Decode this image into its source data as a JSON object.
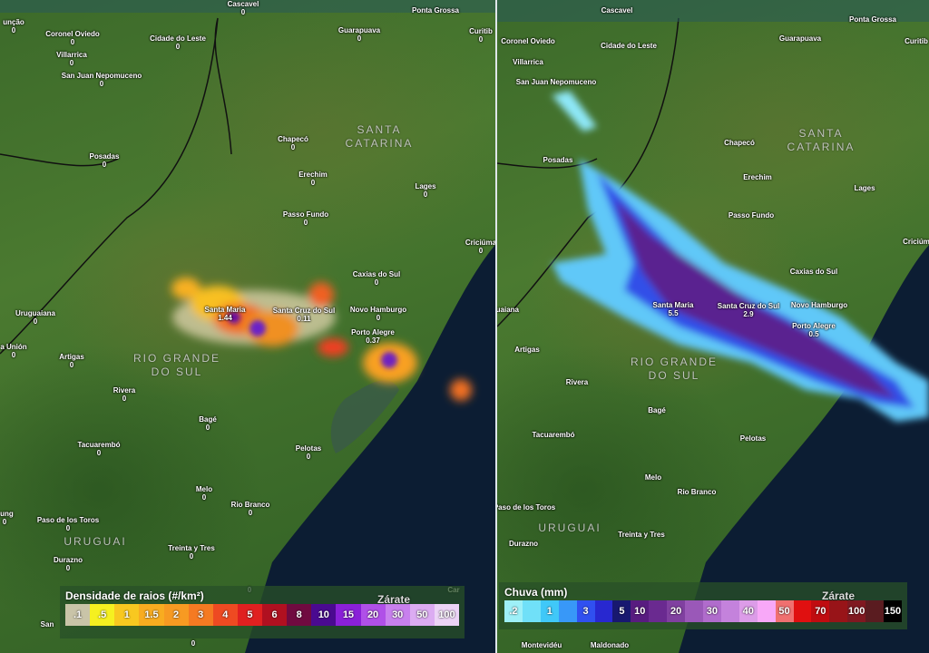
{
  "left_map": {
    "labels": [
      {
        "name": "unção",
        "value": "0"
      },
      {
        "name": "Coronel Oviedo",
        "value": "0"
      },
      {
        "name": "Villarrica",
        "value": "0"
      },
      {
        "name": "San Juan Nepomuceno",
        "value": "0"
      },
      {
        "name": "Cidade do Leste",
        "value": "0"
      },
      {
        "name": "Cascavel",
        "value": "0"
      },
      {
        "name": "Ponta Grossa",
        "value": ""
      },
      {
        "name": "Guarapuava",
        "value": "0"
      },
      {
        "name": "Curitib",
        "value": "0"
      },
      {
        "name": "Posadas",
        "value": "0"
      },
      {
        "name": "Chapecó",
        "value": "0"
      },
      {
        "name": "Erechim",
        "value": "0"
      },
      {
        "name": "Lages",
        "value": "0"
      },
      {
        "name": "Passo Fundo",
        "value": "0"
      },
      {
        "name": "Criciúma",
        "value": "0"
      },
      {
        "name": "Caxias do Sul",
        "value": "0"
      },
      {
        "name": "Uruguaiana",
        "value": "0"
      },
      {
        "name": "Santa Maria",
        "value": "1.44"
      },
      {
        "name": "Santa Cruz do Sul",
        "value": "0.11"
      },
      {
        "name": "Novo Hamburgo",
        "value": "0"
      },
      {
        "name": "Porto Alegre",
        "value": "0.37"
      },
      {
        "name": "a Unión",
        "value": "0"
      },
      {
        "name": "Artigas",
        "value": "0"
      },
      {
        "name": "Rivera",
        "value": "0"
      },
      {
        "name": "Bagé",
        "value": "0"
      },
      {
        "name": "Tacuarembó",
        "value": "0"
      },
      {
        "name": "Pelotas",
        "value": "0"
      },
      {
        "name": "Melo",
        "value": "0"
      },
      {
        "name": "Rio Branco",
        "value": "0"
      },
      {
        "name": "oung",
        "value": "0"
      },
      {
        "name": "Paso de los Toros",
        "value": "0"
      },
      {
        "name": "Treinta y Tres",
        "value": "0"
      },
      {
        "name": "Durazno",
        "value": "0"
      },
      {
        "name": "San",
        "value": ""
      },
      {
        "name": "",
        "value": "0"
      },
      {
        "name": "Car",
        "value": ""
      },
      {
        "name": "",
        "value": "0"
      }
    ],
    "regions": [
      "SANTA\nCATARINA",
      "RIO GRANDE\nDO SUL",
      "URUGUAI"
    ],
    "legend": {
      "title": "Densidade de raios (#/km²)",
      "place": "Zárate",
      "stops": [
        {
          "label": ".1",
          "color": "#c9c4a8"
        },
        {
          "label": ".5",
          "color": "#f5f020"
        },
        {
          "label": "1",
          "color": "#f8c820"
        },
        {
          "label": "1.5",
          "color": "#f8ac20"
        },
        {
          "label": "2",
          "color": "#f79a22"
        },
        {
          "label": "3",
          "color": "#f57a22"
        },
        {
          "label": "4",
          "color": "#ee4a22"
        },
        {
          "label": "5",
          "color": "#e02020"
        },
        {
          "label": "6",
          "color": "#b01020"
        },
        {
          "label": "8",
          "color": "#700a40"
        },
        {
          "label": "10",
          "color": "#4a0a90"
        },
        {
          "label": "15",
          "color": "#8a20d8"
        },
        {
          "label": "20",
          "color": "#b050e8"
        },
        {
          "label": "30",
          "color": "#c880ee"
        },
        {
          "label": "50",
          "color": "#dcacf2"
        },
        {
          "label": "100",
          "color": "#ecd4f6"
        }
      ]
    }
  },
  "right_map": {
    "labels": [
      {
        "name": "Coronel Oviedo",
        "value": ""
      },
      {
        "name": "Villarrica",
        "value": ""
      },
      {
        "name": "San Juan Nepomuceno",
        "value": ""
      },
      {
        "name": "Cidade do Leste",
        "value": ""
      },
      {
        "name": "Cascavel",
        "value": ""
      },
      {
        "name": "Ponta Grossa",
        "value": ""
      },
      {
        "name": "Guarapuava",
        "value": ""
      },
      {
        "name": "Curitib",
        "value": ""
      },
      {
        "name": "Posadas",
        "value": ""
      },
      {
        "name": "Chapecó",
        "value": ""
      },
      {
        "name": "Erechim",
        "value": ""
      },
      {
        "name": "Lages",
        "value": ""
      },
      {
        "name": "Passo Fundo",
        "value": ""
      },
      {
        "name": "Criciúm",
        "value": ""
      },
      {
        "name": "Caxias do Sul",
        "value": ""
      },
      {
        "name": "Uruguaiana",
        "value": ""
      },
      {
        "name": "Santa Maria",
        "value": "5.5"
      },
      {
        "name": "Santa Cruz do Sul",
        "value": "2.9"
      },
      {
        "name": "Novo Hamburgo",
        "value": ""
      },
      {
        "name": "Porto Alegre",
        "value": "0.5"
      },
      {
        "name": "Artigas",
        "value": ""
      },
      {
        "name": "Rivera",
        "value": ""
      },
      {
        "name": "Bagé",
        "value": ""
      },
      {
        "name": "Tacuarembó",
        "value": ""
      },
      {
        "name": "Pelotas",
        "value": ""
      },
      {
        "name": "Melo",
        "value": ""
      },
      {
        "name": "Rio Branco",
        "value": ""
      },
      {
        "name": "Paso de los Toros",
        "value": ""
      },
      {
        "name": "Treinta y Tres",
        "value": ""
      },
      {
        "name": "Durazno",
        "value": ""
      },
      {
        "name": "Montevidéu",
        "value": ""
      },
      {
        "name": "Maldonado",
        "value": ""
      }
    ],
    "regions": [
      "SANTA\nCATARINA",
      "RIO GRANDE\nDO SUL",
      "URUGUAI"
    ],
    "legend": {
      "title": "Chuva (mm)",
      "place": "Zárate",
      "stops": [
        {
          "label": ".2",
          "color": "#9ef0f8"
        },
        {
          "label": "",
          "color": "#70e0f8"
        },
        {
          "label": "1",
          "color": "#40c8f8"
        },
        {
          "label": "",
          "color": "#3898f8"
        },
        {
          "label": "3",
          "color": "#3050f0"
        },
        {
          "label": "",
          "color": "#2828d0"
        },
        {
          "label": "5",
          "color": "#181870"
        },
        {
          "label": "10",
          "color": "#581c80"
        },
        {
          "label": "",
          "color": "#6a2a90"
        },
        {
          "label": "20",
          "color": "#8040a0"
        },
        {
          "label": "",
          "color": "#9a58b8"
        },
        {
          "label": "30",
          "color": "#b06ccc"
        },
        {
          "label": "",
          "color": "#c482dc"
        },
        {
          "label": "40",
          "color": "#dc9ce8"
        },
        {
          "label": "",
          "color": "#f8a8f8"
        },
        {
          "label": "50",
          "color": "#f07070"
        },
        {
          "label": "",
          "color": "#e01010"
        },
        {
          "label": "70",
          "color": "#c00c10"
        },
        {
          "label": "",
          "color": "#981418"
        },
        {
          "label": "100",
          "color": "#801820"
        },
        {
          "label": "",
          "color": "#5a1c20"
        },
        {
          "label": "150",
          "color": "#000000"
        }
      ]
    }
  }
}
